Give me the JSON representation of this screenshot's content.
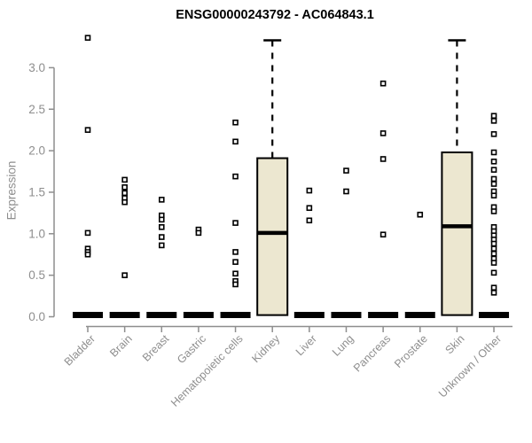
{
  "page": {
    "background": "#ffffff"
  },
  "chart_data": {
    "type": "boxplot",
    "title": "ENSG00000243792 - AC064843.1",
    "xlabel": "",
    "ylabel": "Expression",
    "ylim": [
      0,
      3.42
    ],
    "yticks": [
      0.0,
      0.5,
      1.0,
      1.5,
      2.0,
      2.5,
      3.0
    ],
    "grid": false,
    "legend": "none",
    "marker": "open-square",
    "colors": {
      "box_fill": "#ece7d0",
      "box_stroke": "#000000",
      "median": "#000000",
      "point_stroke": "#000000",
      "point_fill": "#ffffff",
      "axis": "#8e8e8e",
      "tick_label": "#8e8e8e",
      "title": "#000000"
    },
    "groups": [
      {
        "label": "Bladder",
        "box": {
          "q1": 0,
          "median": 0,
          "q3": 0,
          "whisker_low": 0,
          "whisker_high": 0
        },
        "points": [
          3.36,
          2.25,
          1.01,
          0.82,
          0.78,
          0.75
        ]
      },
      {
        "label": "Brain",
        "box": {
          "q1": 0,
          "median": 0,
          "q3": 0,
          "whisker_low": 0,
          "whisker_high": 0
        },
        "points": [
          1.65,
          1.56,
          1.49,
          1.43,
          1.38,
          0.5
        ]
      },
      {
        "label": "Breast",
        "box": {
          "q1": 0,
          "median": 0,
          "q3": 0,
          "whisker_low": 0,
          "whisker_high": 0
        },
        "points": [
          1.41,
          1.22,
          1.17,
          1.08,
          0.96,
          0.86
        ]
      },
      {
        "label": "Gastric",
        "box": {
          "q1": 0,
          "median": 0,
          "q3": 0,
          "whisker_low": 0,
          "whisker_high": 0
        },
        "points": [
          1.05,
          1.01
        ]
      },
      {
        "label": "Hematopoietic cells",
        "box": {
          "q1": 0,
          "median": 0,
          "q3": 0,
          "whisker_low": 0,
          "whisker_high": 0
        },
        "points": [
          2.34,
          2.11,
          1.69,
          1.13,
          0.78,
          0.66,
          0.52,
          0.43,
          0.39
        ]
      },
      {
        "label": "Kidney",
        "box": {
          "q1": 0.02,
          "median": 1.01,
          "q3": 1.91,
          "whisker_low": 0.02,
          "whisker_high": 3.33
        },
        "points": []
      },
      {
        "label": "Liver",
        "box": {
          "q1": 0,
          "median": 0,
          "q3": 0,
          "whisker_low": 0,
          "whisker_high": 0
        },
        "points": [
          1.52,
          1.31,
          1.16
        ]
      },
      {
        "label": "Lung",
        "box": {
          "q1": 0,
          "median": 0,
          "q3": 0,
          "whisker_low": 0,
          "whisker_high": 0
        },
        "points": [
          1.76,
          1.51
        ]
      },
      {
        "label": "Pancreas",
        "box": {
          "q1": 0,
          "median": 0,
          "q3": 0,
          "whisker_low": 0,
          "whisker_high": 0
        },
        "points": [
          2.81,
          2.21,
          1.9,
          0.99
        ]
      },
      {
        "label": "Prostate",
        "box": {
          "q1": 0,
          "median": 0,
          "q3": 0,
          "whisker_low": 0,
          "whisker_high": 0
        },
        "points": [
          1.23
        ]
      },
      {
        "label": "Skin",
        "box": {
          "q1": 0.02,
          "median": 1.09,
          "q3": 1.98,
          "whisker_low": 0.02,
          "whisker_high": 3.33
        },
        "points": []
      },
      {
        "label": "Unknown / Other",
        "box": {
          "q1": 0,
          "median": 0,
          "q3": 0,
          "whisker_low": 0,
          "whisker_high": 0
        },
        "points": [
          2.42,
          2.36,
          2.2,
          1.98,
          1.87,
          1.77,
          1.66,
          1.6,
          1.51,
          1.46,
          1.32,
          1.27,
          1.08,
          1.03,
          0.98,
          0.93,
          0.88,
          0.82,
          0.76,
          0.7,
          0.65,
          0.53,
          0.35,
          0.29
        ]
      }
    ]
  }
}
